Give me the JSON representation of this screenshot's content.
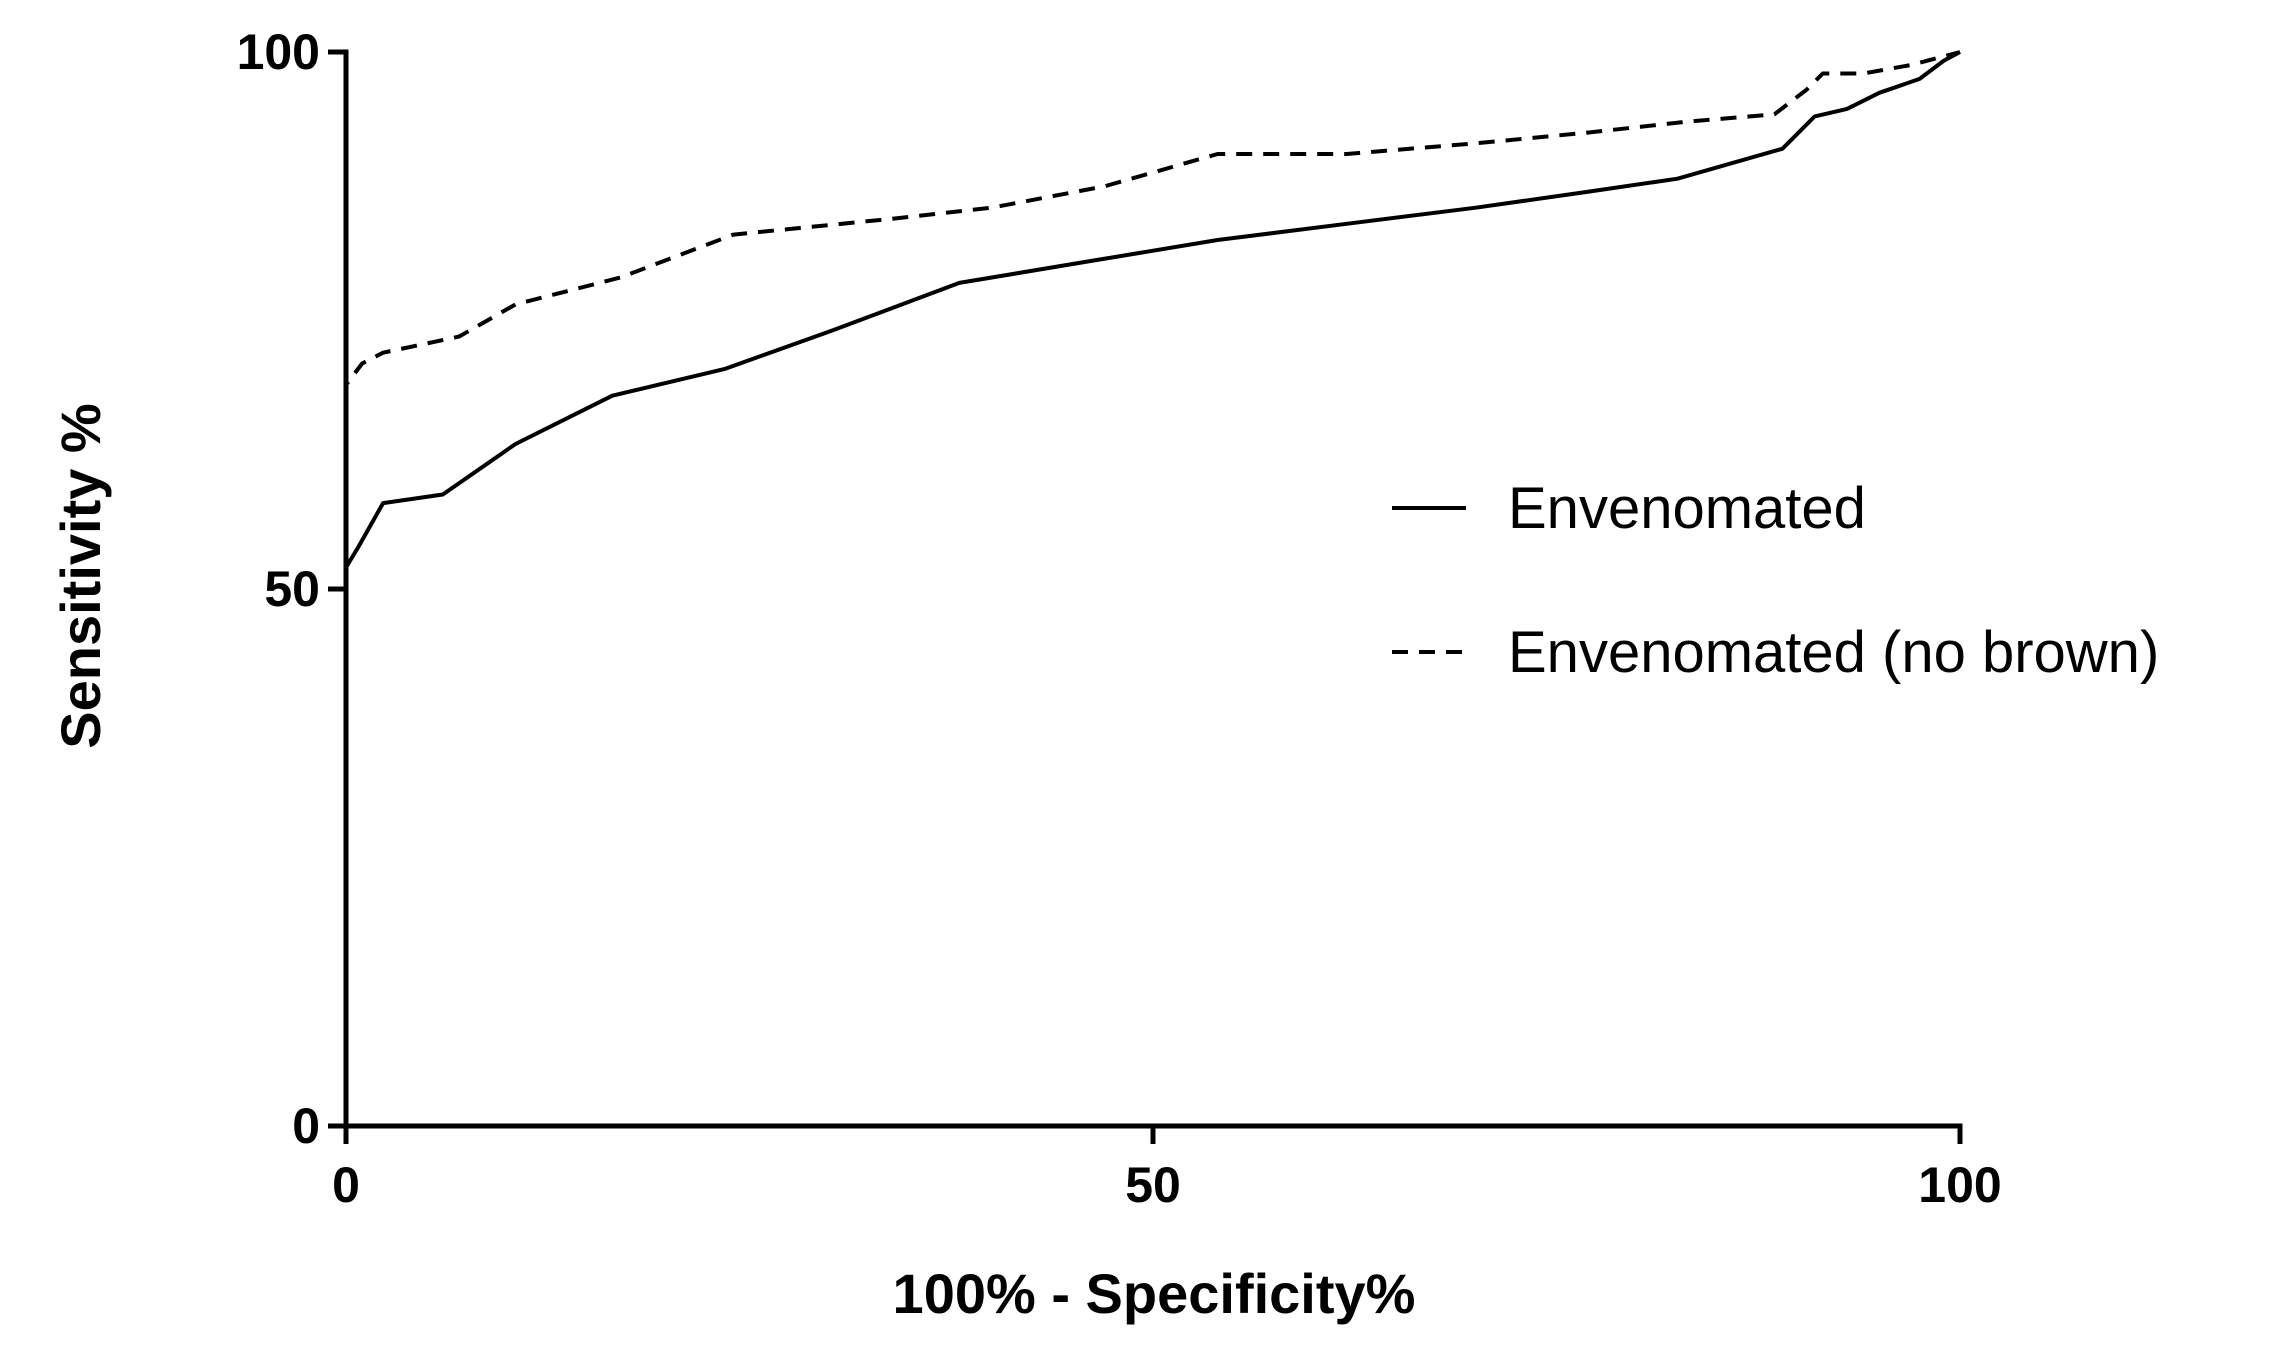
{
  "chart_data": {
    "type": "line",
    "title": "",
    "xlabel": "100% - Specificity%",
    "ylabel": "Sensitivity %",
    "xlim": [
      0,
      100
    ],
    "ylim": [
      0,
      100
    ],
    "xticks": [
      0,
      50,
      100
    ],
    "yticks": [
      0,
      50,
      100
    ],
    "xtick_labels": [
      "0",
      "50",
      "100"
    ],
    "ytick_labels": [
      "0",
      "50",
      "100"
    ],
    "grid": false,
    "legend_position": "right",
    "series": [
      {
        "name": "Envenomated",
        "style": "solid",
        "color": "#000000",
        "x": [
          0,
          0,
          0.8,
          2.3,
          6,
          10.5,
          16.5,
          23.5,
          30,
          38,
          46,
          54,
          62,
          70,
          77,
          82.5,
          89,
          91,
          93,
          95,
          97.5,
          99,
          100
        ],
        "y": [
          0,
          52,
          54,
          58,
          58.8,
          63.5,
          68,
          70.5,
          74,
          78.5,
          80.5,
          82.5,
          84,
          85.5,
          87,
          88.2,
          91,
          94,
          94.7,
          96.2,
          97.5,
          99.2,
          100
        ]
      },
      {
        "name": "Envenomated (no brown)",
        "style": "dashed",
        "color": "#000000",
        "x": [
          0,
          0,
          1,
          2.3,
          7,
          10.5,
          17,
          24,
          34,
          40,
          47,
          54,
          62,
          70,
          77,
          83,
          88.5,
          90.5,
          91.5,
          94,
          97,
          100
        ],
        "y": [
          0,
          69,
          71,
          72,
          73.5,
          76.5,
          79,
          83,
          84.5,
          85.5,
          87.5,
          90.5,
          90.5,
          91.5,
          92.5,
          93.5,
          94.2,
          96.5,
          98,
          98,
          98.8,
          100
        ]
      }
    ]
  }
}
